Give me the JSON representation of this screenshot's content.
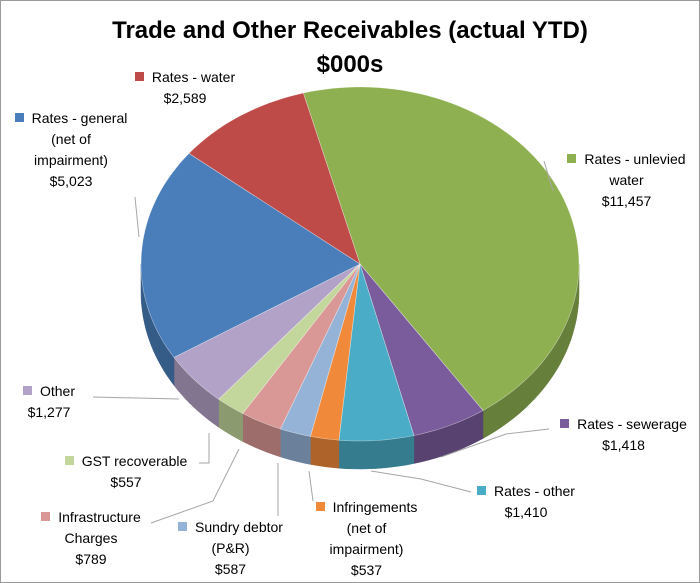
{
  "chart_data": {
    "type": "pie3d",
    "title": "Trade and Other Receivables (actual YTD)",
    "subtitle": "$000s",
    "categories": [
      "Rates - unlevied water",
      "Rates - sewerage",
      "Rates - other",
      "Infringements (net of impairment)",
      "Sundry debtor (P&R)",
      "Infrastructure Charges",
      "GST recoverable",
      "Other",
      "Rates - general (net of impairment)",
      "Rates - water"
    ],
    "values": [
      11457,
      1418,
      1410,
      537,
      587,
      789,
      557,
      1277,
      5023,
      2589
    ],
    "value_labels": [
      "$11,457",
      "$1,418",
      "$1,410",
      "$537",
      "$587",
      "$789",
      "$557",
      "$1,277",
      "$5,023",
      "$2,589"
    ],
    "colors": [
      "#8eb050",
      "#7a5c9c",
      "#4aacc6",
      "#f08a3a",
      "#95b3d7",
      "#d99795",
      "#c3d69b",
      "#b3a2c7",
      "#4a7ebb",
      "#be4b48"
    ]
  }
}
